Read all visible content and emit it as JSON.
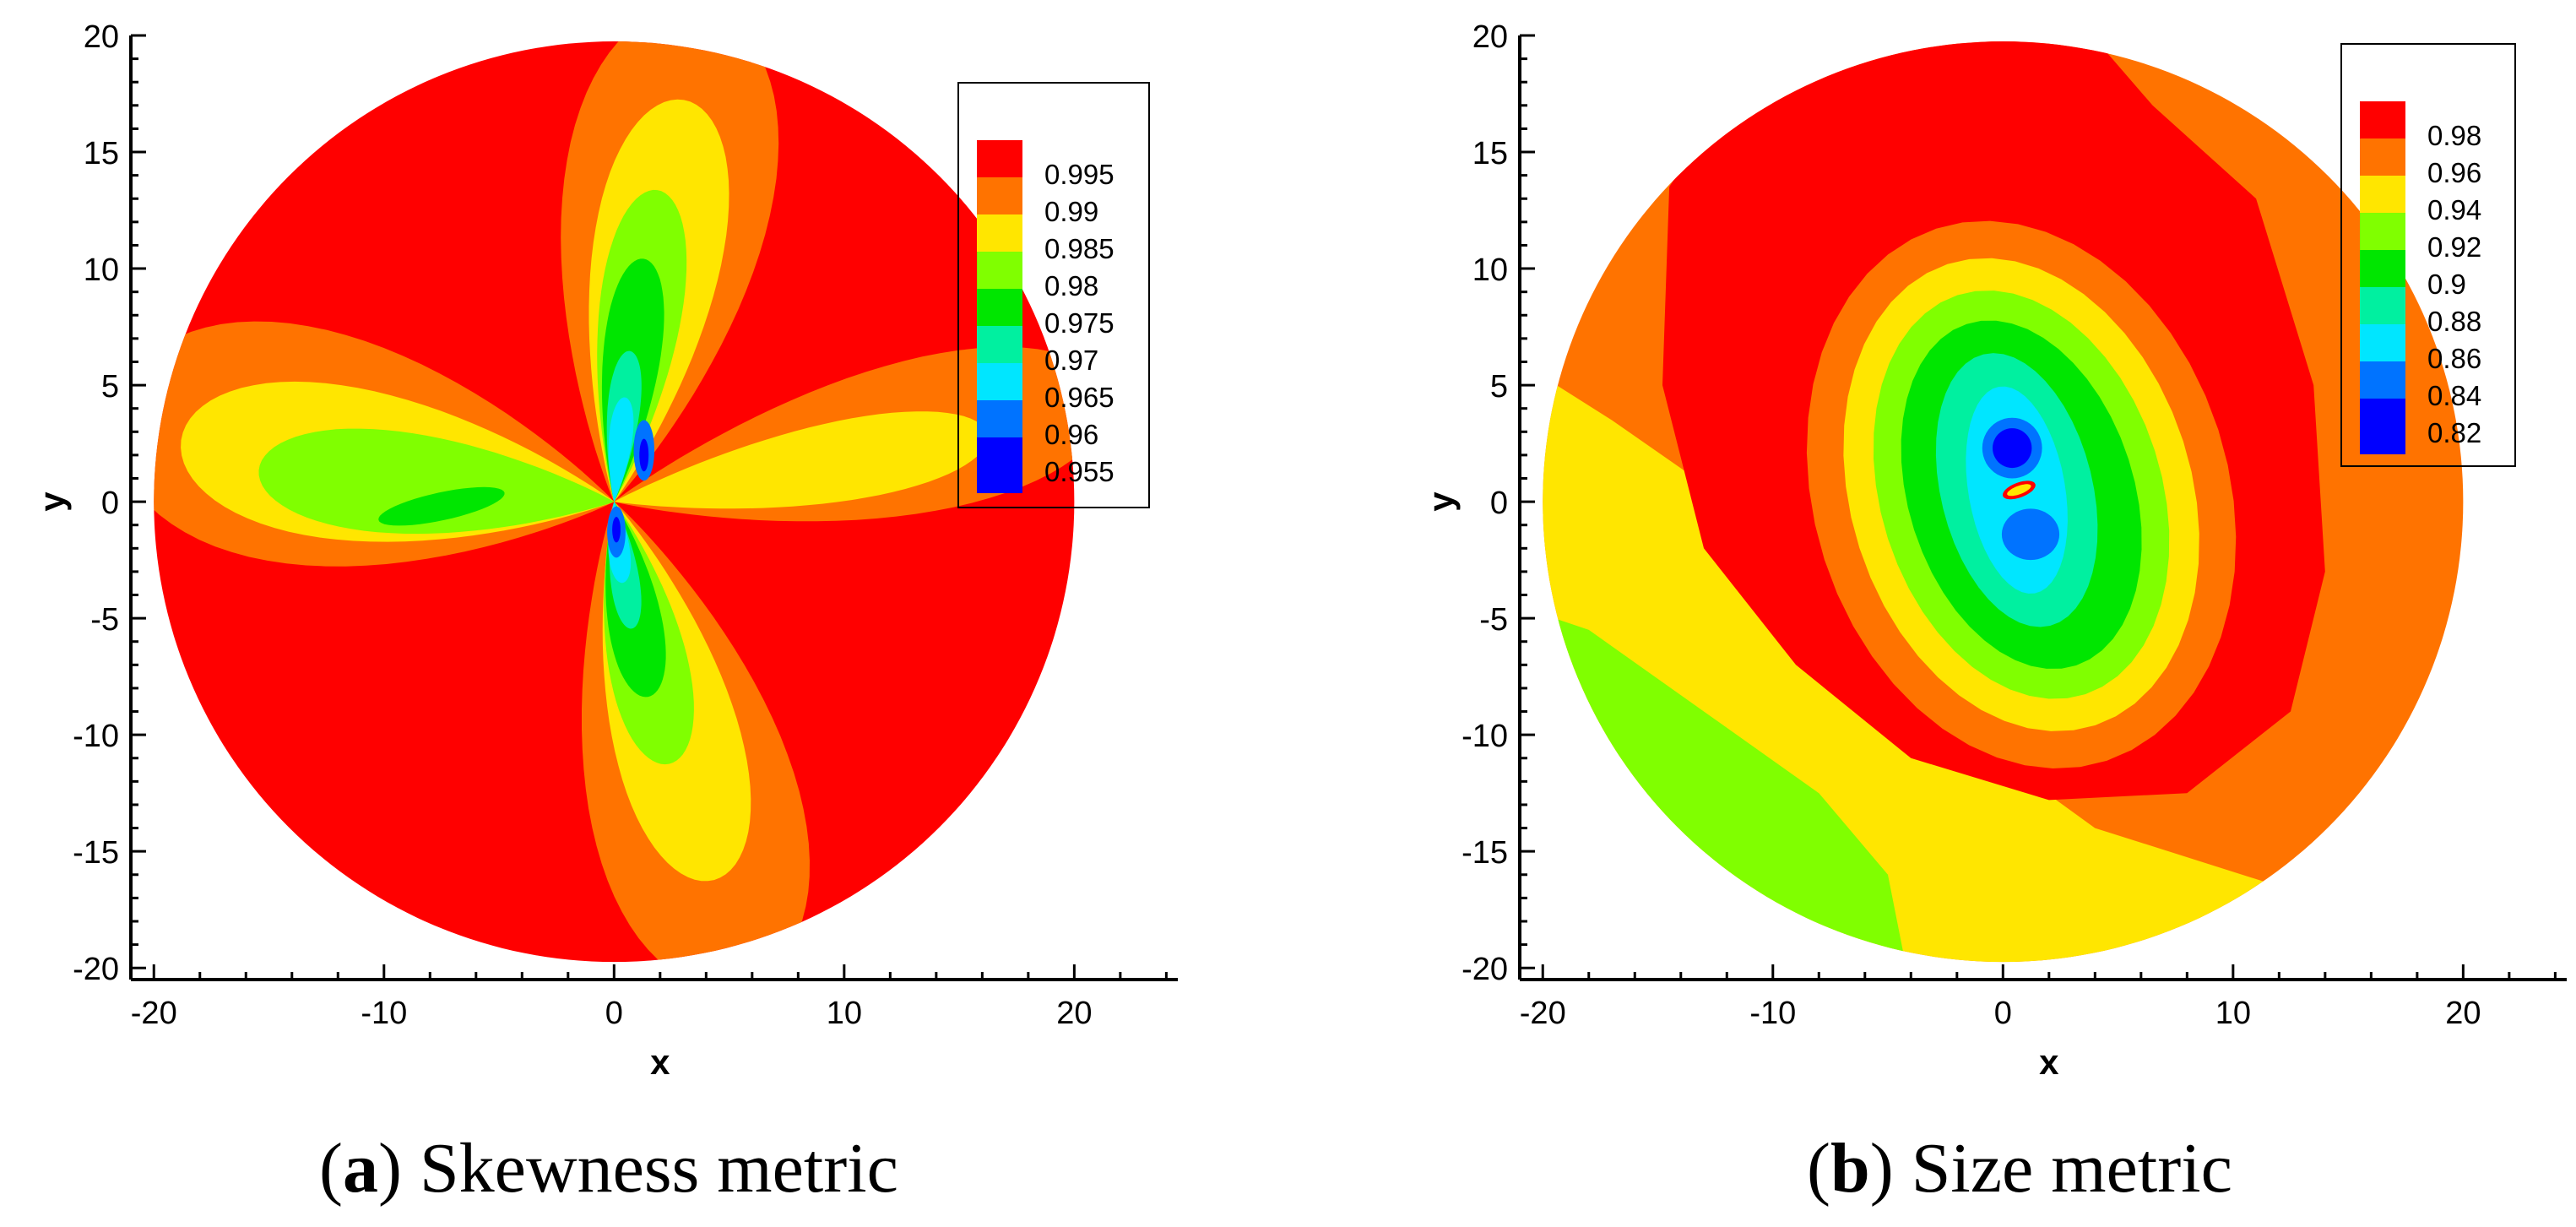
{
  "colors": {
    "red": "#ff0000",
    "orange": "#ff7300",
    "yellow": "#ffe600",
    "lightgreen": "#80ff00",
    "green": "#00e600",
    "teal": "#00f0a0",
    "cyan": "#00e6ff",
    "blue": "#0073ff",
    "darkblue": "#0000ff"
  },
  "chart_data": [
    {
      "type": "heatmap",
      "title": "Skewness metric",
      "caption_letter": "a",
      "xlabel": "x",
      "ylabel": "y",
      "xlim": [
        -21,
        24.5
      ],
      "ylim": [
        -20.5,
        20
      ],
      "xticks": [
        -20,
        -10,
        0,
        10,
        20
      ],
      "yticks": [
        -20,
        -15,
        -10,
        -5,
        0,
        5,
        10,
        15,
        20
      ],
      "domain": {
        "shape": "circle",
        "center": [
          0,
          0
        ],
        "radius": 20
      },
      "legend": {
        "position": "top-right",
        "levels": [
          "0.995",
          "0.99",
          "0.985",
          "0.98",
          "0.975",
          "0.97",
          "0.965",
          "0.96",
          "0.955"
        ],
        "colors": [
          "#ff0000",
          "#ff7300",
          "#ffe600",
          "#80ff00",
          "#00e600",
          "#00f0a0",
          "#00e6ff",
          "#0073ff",
          "#0000ff"
        ]
      }
    },
    {
      "type": "heatmap",
      "title": "Size metric",
      "caption_letter": "b",
      "xlabel": "x",
      "ylabel": "y",
      "xlim": [
        -21,
        24.5
      ],
      "ylim": [
        -20.5,
        20
      ],
      "xticks": [
        -20,
        -10,
        0,
        10,
        20
      ],
      "yticks": [
        -20,
        -15,
        -10,
        -5,
        0,
        5,
        10,
        15,
        20
      ],
      "domain": {
        "shape": "circle",
        "center": [
          0,
          0
        ],
        "radius": 20
      },
      "legend": {
        "position": "top-right",
        "levels": [
          "0.98",
          "0.96",
          "0.94",
          "0.92",
          "0.9",
          "0.88",
          "0.86",
          "0.84",
          "0.82"
        ],
        "colors": [
          "#ff0000",
          "#ff7300",
          "#ffe600",
          "#80ff00",
          "#00e600",
          "#00f0a0",
          "#00e6ff",
          "#0073ff",
          "#0000ff"
        ]
      }
    }
  ]
}
